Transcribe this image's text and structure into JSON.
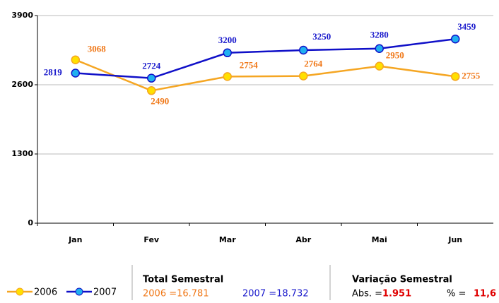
{
  "chart_data": {
    "type": "line",
    "categories": [
      "Jan",
      "Fev",
      "Mar",
      "Abr",
      "Mai",
      "Jun"
    ],
    "series": [
      {
        "name": "2006",
        "color": "#f5a623",
        "marker": "#ffe000",
        "label_color": "#f07818",
        "values": [
          3068,
          2490,
          2754,
          2764,
          2950,
          2755
        ]
      },
      {
        "name": "2007",
        "color": "#1010c8",
        "marker": "#20b0f0",
        "label_color": "#1a1acc",
        "values": [
          2819,
          2724,
          3200,
          3250,
          3280,
          3459
        ]
      }
    ],
    "ylim": [
      0,
      3900
    ],
    "yticks": [
      0,
      1300,
      2600,
      3900
    ],
    "grid": true,
    "summary": {
      "total_title": "Total Semestral",
      "total_2006": "2006 =16.781",
      "total_2007": "2007 =18.732",
      "variation_title": "Variação Semestral",
      "abs_label": "Abs. =",
      "abs_value": "1.951",
      "pct_label": "% =",
      "pct_value": "11,6"
    }
  }
}
